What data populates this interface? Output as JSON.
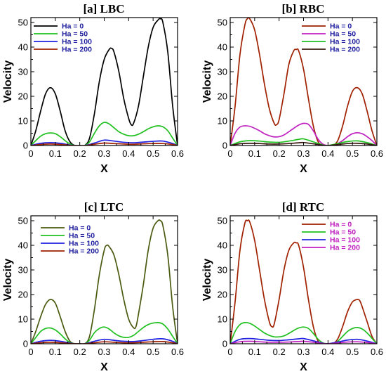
{
  "chart_data": [
    {
      "type": "line",
      "title": "[a] LBC",
      "xlabel": "X",
      "ylabel": "Velocity",
      "xlim": [
        0,
        0.6
      ],
      "ylim": [
        0,
        52
      ],
      "xticks": [
        0,
        0.1,
        0.2,
        0.3,
        0.4,
        0.5,
        0.6
      ],
      "yticks": [
        0,
        10,
        20,
        30,
        40,
        50
      ],
      "legend_position": "top-left",
      "legend_text_color": "#2020a0",
      "series": [
        {
          "name": "Ha = 0",
          "color": "#000000",
          "x": [
            0,
            0.02,
            0.04,
            0.06,
            0.08,
            0.1,
            0.12,
            0.14,
            0.16,
            0.18,
            0.2,
            0.22,
            0.24,
            0.26,
            0.28,
            0.3,
            0.32,
            0.33,
            0.34,
            0.36,
            0.38,
            0.4,
            0.41,
            0.42,
            0.44,
            0.46,
            0.48,
            0.5,
            0.52,
            0.53,
            0.54,
            0.56,
            0.58,
            0.6
          ],
          "y": [
            0,
            6,
            14,
            21,
            23.5,
            21,
            14,
            6,
            1.5,
            0,
            0,
            0,
            3,
            13,
            26,
            35,
            39,
            39.5,
            38,
            30,
            19,
            11,
            8.5,
            9,
            16,
            28,
            40,
            48,
            51,
            51.5,
            50,
            38,
            16,
            0
          ]
        },
        {
          "name": "Ha = 50",
          "color": "#20c020",
          "x": [
            0,
            0.02,
            0.04,
            0.06,
            0.08,
            0.1,
            0.12,
            0.14,
            0.16,
            0.18,
            0.2,
            0.22,
            0.24,
            0.26,
            0.28,
            0.3,
            0.32,
            0.34,
            0.36,
            0.38,
            0.4,
            0.42,
            0.44,
            0.46,
            0.48,
            0.5,
            0.52,
            0.54,
            0.56,
            0.58,
            0.6
          ],
          "y": [
            0,
            2,
            3.8,
            4.8,
            5.1,
            4.8,
            3.6,
            2,
            0.6,
            0,
            0,
            0,
            1.5,
            5,
            8,
            9.4,
            8.8,
            7.2,
            5.6,
            4.6,
            4.0,
            4.0,
            4.6,
            5.6,
            6.8,
            7.6,
            8.0,
            7.6,
            6,
            3,
            0
          ]
        },
        {
          "name": "Ha = 100",
          "color": "#2020e0",
          "x": [
            0,
            0.04,
            0.08,
            0.12,
            0.16,
            0.18,
            0.22,
            0.26,
            0.3,
            0.34,
            0.38,
            0.42,
            0.46,
            0.5,
            0.54,
            0.58,
            0.6
          ],
          "y": [
            0,
            0.9,
            1.2,
            0.9,
            0.2,
            0,
            0,
            1.0,
            2.2,
            1.8,
            1.3,
            1.1,
            1.4,
            1.7,
            1.8,
            0.8,
            0
          ]
        },
        {
          "name": "Ha = 200",
          "color": "#a02000",
          "x": [
            0,
            0.04,
            0.08,
            0.12,
            0.16,
            0.18,
            0.22,
            0.26,
            0.3,
            0.34,
            0.38,
            0.42,
            0.46,
            0.5,
            0.54,
            0.58,
            0.6
          ],
          "y": [
            0,
            0.4,
            0.6,
            0.4,
            0.1,
            0,
            0,
            0.5,
            1.0,
            0.8,
            0.6,
            0.5,
            0.7,
            0.8,
            0.8,
            0.4,
            0
          ]
        }
      ]
    },
    {
      "type": "line",
      "title": "[b] RBC",
      "xlabel": "X",
      "ylabel": "Velocity",
      "xlim": [
        0,
        0.6
      ],
      "ylim": [
        0,
        52
      ],
      "xticks": [
        0,
        0.1,
        0.2,
        0.3,
        0.4,
        0.5,
        0.6
      ],
      "yticks": [
        0,
        10,
        20,
        30,
        40,
        50
      ],
      "legend_position": "top-right",
      "legend_text_color": "#2020a0",
      "series": [
        {
          "name": "Ha = 0",
          "color": "#a02000",
          "x": [
            0,
            0.02,
            0.04,
            0.06,
            0.07,
            0.08,
            0.1,
            0.12,
            0.14,
            0.16,
            0.18,
            0.19,
            0.2,
            0.22,
            0.24,
            0.26,
            0.27,
            0.28,
            0.3,
            0.32,
            0.34,
            0.36,
            0.38,
            0.4,
            0.42,
            0.44,
            0.46,
            0.48,
            0.5,
            0.52,
            0.54,
            0.56,
            0.58,
            0.6
          ],
          "y": [
            0,
            16,
            37,
            49,
            51.5,
            51.5,
            47,
            37,
            25,
            15,
            9,
            8.5,
            10.5,
            21,
            33,
            38.5,
            39,
            38.5,
            31,
            19,
            8,
            1.5,
            0,
            0,
            0,
            2,
            8,
            16,
            22,
            23.5,
            21,
            14,
            6,
            0
          ]
        },
        {
          "name": "Ha = 50",
          "color": "#c020c0",
          "x": [
            0,
            0.02,
            0.04,
            0.06,
            0.08,
            0.1,
            0.12,
            0.14,
            0.16,
            0.18,
            0.2,
            0.22,
            0.24,
            0.26,
            0.28,
            0.3,
            0.32,
            0.34,
            0.36,
            0.38,
            0.4,
            0.42,
            0.44,
            0.46,
            0.48,
            0.5,
            0.52,
            0.54,
            0.56,
            0.58,
            0.6
          ],
          "y": [
            0,
            5,
            7.5,
            8,
            7.8,
            7,
            6,
            4.8,
            4,
            3.5,
            3.6,
            4.3,
            5.6,
            7,
            8.3,
            9,
            8.6,
            6,
            2.5,
            0.5,
            0,
            0,
            0.8,
            2,
            3.6,
            4.8,
            5.2,
            4.8,
            3.6,
            2,
            0
          ]
        },
        {
          "name": "Ha = 100",
          "color": "#20c020",
          "x": [
            0,
            0.04,
            0.08,
            0.12,
            0.16,
            0.2,
            0.24,
            0.28,
            0.3,
            0.34,
            0.38,
            0.4,
            0.44,
            0.48,
            0.52,
            0.56,
            0.6
          ],
          "y": [
            0,
            1.5,
            2.0,
            1.8,
            1.4,
            1.3,
            1.8,
            2.5,
            2.7,
            1.5,
            0.2,
            0,
            0.8,
            1.6,
            1.9,
            1.2,
            0
          ]
        },
        {
          "name": "Ha = 200",
          "color": "#3a1a10",
          "x": [
            0,
            0.04,
            0.08,
            0.12,
            0.16,
            0.2,
            0.24,
            0.28,
            0.3,
            0.34,
            0.38,
            0.4,
            0.44,
            0.48,
            0.52,
            0.56,
            0.6
          ],
          "y": [
            0,
            0.7,
            0.9,
            0.8,
            0.6,
            0.6,
            0.8,
            1.1,
            1.2,
            0.7,
            0.1,
            0,
            0.4,
            0.8,
            0.9,
            0.6,
            0
          ]
        }
      ]
    },
    {
      "type": "line",
      "title": "[c] LTC",
      "xlabel": "X",
      "ylabel": "Velocity",
      "xlim": [
        0,
        0.6
      ],
      "ylim": [
        0,
        52
      ],
      "xticks": [
        0,
        0.1,
        0.2,
        0.3,
        0.4,
        0.5,
        0.6
      ],
      "yticks": [
        0,
        10,
        20,
        30,
        40,
        50
      ],
      "legend_position": "top-left",
      "legend_text_color": "#2020a0",
      "series": [
        {
          "name": "Ha = 0",
          "color": "#4a5a10",
          "x": [
            0,
            0.02,
            0.04,
            0.06,
            0.08,
            0.1,
            0.12,
            0.14,
            0.16,
            0.18,
            0.2,
            0.22,
            0.24,
            0.26,
            0.28,
            0.3,
            0.31,
            0.32,
            0.34,
            0.36,
            0.38,
            0.4,
            0.42,
            0.43,
            0.44,
            0.46,
            0.48,
            0.5,
            0.52,
            0.53,
            0.54,
            0.56,
            0.58,
            0.6
          ],
          "y": [
            0,
            5,
            11,
            16,
            18,
            16.5,
            11,
            5,
            1,
            0,
            0,
            0,
            3,
            14,
            28,
            38,
            40,
            39.5,
            36,
            28,
            18,
            10,
            6.5,
            7,
            12,
            24,
            38,
            47,
            50,
            50,
            48,
            36,
            15,
            0
          ]
        },
        {
          "name": "Ha = 50",
          "color": "#20c020",
          "x": [
            0,
            0.02,
            0.04,
            0.06,
            0.08,
            0.1,
            0.12,
            0.14,
            0.16,
            0.18,
            0.2,
            0.22,
            0.24,
            0.26,
            0.28,
            0.3,
            0.32,
            0.34,
            0.36,
            0.38,
            0.4,
            0.42,
            0.44,
            0.46,
            0.48,
            0.5,
            0.52,
            0.54,
            0.56,
            0.58,
            0.6
          ],
          "y": [
            0,
            2.5,
            5,
            6.2,
            6.4,
            5.6,
            4,
            2,
            0.5,
            0,
            0,
            0,
            1.5,
            4.5,
            6.2,
            6.8,
            6,
            4.4,
            3.2,
            2.6,
            2.6,
            3.4,
            5,
            6.6,
            7.8,
            8.4,
            8.6,
            8,
            6,
            3,
            0
          ]
        },
        {
          "name": "Ha = 100",
          "color": "#2020e0",
          "x": [
            0,
            0.04,
            0.08,
            0.12,
            0.16,
            0.18,
            0.22,
            0.26,
            0.3,
            0.34,
            0.38,
            0.42,
            0.46,
            0.5,
            0.54,
            0.58,
            0.6
          ],
          "y": [
            0,
            1.0,
            1.4,
            1.0,
            0.3,
            0,
            0,
            1.0,
            1.8,
            1.4,
            1.0,
            0.9,
            1.3,
            1.8,
            2.0,
            1.0,
            0
          ]
        },
        {
          "name": "Ha = 200",
          "color": "#a02000",
          "x": [
            0,
            0.04,
            0.08,
            0.12,
            0.16,
            0.18,
            0.22,
            0.26,
            0.3,
            0.34,
            0.38,
            0.42,
            0.46,
            0.5,
            0.54,
            0.58,
            0.6
          ],
          "y": [
            0,
            0.4,
            0.6,
            0.4,
            0.1,
            0,
            0,
            0.4,
            0.8,
            0.6,
            0.4,
            0.4,
            0.6,
            0.8,
            0.9,
            0.4,
            0
          ]
        }
      ]
    },
    {
      "type": "line",
      "title": "[d] RTC",
      "xlabel": "X",
      "ylabel": "Velocity",
      "xlim": [
        0,
        0.6
      ],
      "ylim": [
        0,
        52
      ],
      "xticks": [
        0,
        0.1,
        0.2,
        0.3,
        0.4,
        0.5,
        0.6
      ],
      "yticks": [
        0,
        10,
        20,
        30,
        40,
        50
      ],
      "legend_position": "top-right",
      "legend_text_color": "#c020c0",
      "series": [
        {
          "name": "Ha = 0",
          "color": "#a02000",
          "x": [
            0,
            0.02,
            0.04,
            0.06,
            0.07,
            0.08,
            0.1,
            0.12,
            0.14,
            0.16,
            0.17,
            0.18,
            0.2,
            0.22,
            0.24,
            0.26,
            0.27,
            0.28,
            0.3,
            0.32,
            0.34,
            0.36,
            0.38,
            0.4,
            0.42,
            0.44,
            0.46,
            0.48,
            0.5,
            0.52,
            0.53,
            0.54,
            0.56,
            0.58,
            0.6
          ],
          "y": [
            0,
            17,
            38,
            49,
            50,
            49.5,
            42,
            30,
            18,
            9,
            7,
            8,
            18,
            30,
            38,
            41,
            41,
            40,
            31,
            18,
            7,
            1,
            0,
            0,
            0,
            2,
            7,
            13,
            17,
            18,
            17.5,
            15,
            9,
            3,
            0
          ]
        },
        {
          "name": "Ha = 50",
          "color": "#20c020",
          "x": [
            0,
            0.02,
            0.04,
            0.06,
            0.08,
            0.1,
            0.12,
            0.14,
            0.16,
            0.18,
            0.2,
            0.22,
            0.24,
            0.26,
            0.28,
            0.3,
            0.32,
            0.34,
            0.36,
            0.38,
            0.4,
            0.42,
            0.44,
            0.46,
            0.48,
            0.5,
            0.52,
            0.54,
            0.56,
            0.58,
            0.6
          ],
          "y": [
            0,
            5,
            7.8,
            8.6,
            8.3,
            7.2,
            5.8,
            4.4,
            3.4,
            2.8,
            2.8,
            3.2,
            4.2,
            5.4,
            6.4,
            6.8,
            6.2,
            4.2,
            1.8,
            0.3,
            0,
            0,
            1,
            3,
            5,
            6.2,
            6.6,
            6,
            4.4,
            2.2,
            0
          ]
        },
        {
          "name": "Ha = 100",
          "color": "#2020e0",
          "x": [
            0,
            0.04,
            0.08,
            0.12,
            0.16,
            0.2,
            0.24,
            0.28,
            0.3,
            0.34,
            0.38,
            0.4,
            0.44,
            0.48,
            0.52,
            0.56,
            0.6
          ],
          "y": [
            0,
            1.8,
            2.1,
            1.8,
            1.4,
            1.3,
            1.6,
            2.0,
            2.1,
            1.2,
            0.2,
            0,
            0.7,
            1.5,
            1.8,
            1.1,
            0
          ]
        },
        {
          "name": "Ha = 200",
          "color": "#c020c0",
          "x": [
            0,
            0.04,
            0.08,
            0.12,
            0.16,
            0.2,
            0.24,
            0.28,
            0.3,
            0.34,
            0.38,
            0.4,
            0.44,
            0.48,
            0.52,
            0.56,
            0.6
          ],
          "y": [
            0,
            0.8,
            1.0,
            0.8,
            0.6,
            0.6,
            0.7,
            0.9,
            1.0,
            0.6,
            0.1,
            0,
            0.3,
            0.7,
            0.8,
            0.5,
            0
          ]
        }
      ]
    }
  ]
}
